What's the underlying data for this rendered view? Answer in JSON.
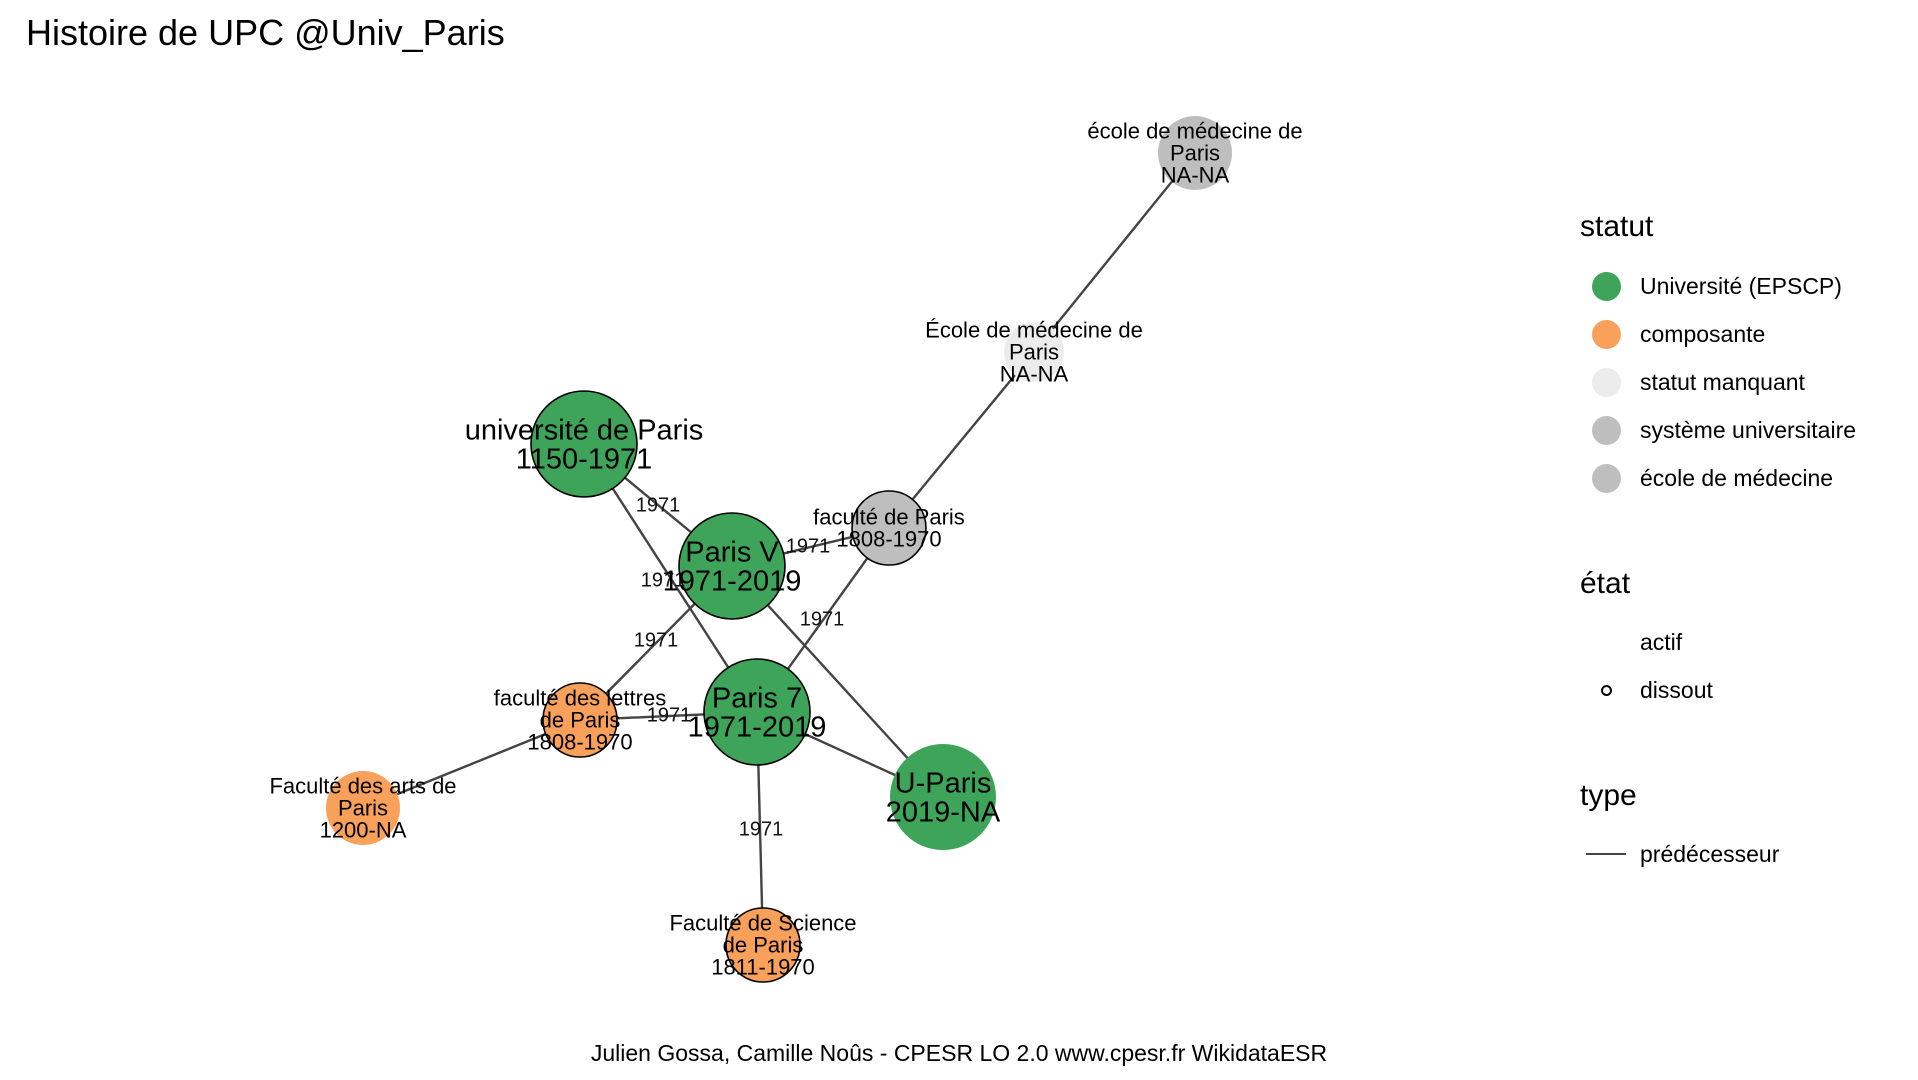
{
  "title": "Histoire de UPC @Univ_Paris",
  "caption": "Julien Gossa, Camille Noûs - CPESR LO 2.0 www.cpesr.fr WikidataESR",
  "legend": {
    "statut": {
      "title": "statut",
      "items": [
        {
          "label": "Université (EPSCP)",
          "color": "#3ea45a"
        },
        {
          "label": "composante",
          "color": "#f9a05a"
        },
        {
          "label": "statut manquant",
          "color": "#ececec"
        },
        {
          "label": "système universitaire",
          "color": "#bebebe"
        },
        {
          "label": "école de médecine",
          "color": "#bebebe"
        }
      ]
    },
    "etat": {
      "title": "état",
      "items": [
        {
          "label": "actif"
        },
        {
          "label": "dissout"
        }
      ]
    },
    "type": {
      "title": "type",
      "items": [
        {
          "label": "prédécesseur",
          "color": "#444444"
        }
      ]
    }
  },
  "diagram": {
    "nodes": [
      {
        "id": "ecole_med_1",
        "lines": [
          "école de médecine de",
          "Paris",
          "NA-NA"
        ],
        "fill": "#bebebe",
        "outline": false
      },
      {
        "id": "ecole_med_2",
        "lines": [
          "École de médecine de",
          "Paris",
          "NA-NA"
        ],
        "fill": "#ececec",
        "outline": false
      },
      {
        "id": "univ_paris",
        "lines": [
          "université de Paris",
          "1150-1971"
        ],
        "fill": "#3ea45a",
        "outline": true
      },
      {
        "id": "fac_paris",
        "lines": [
          "faculté de Paris",
          "1808-1970"
        ],
        "fill": "#bebebe",
        "outline": true
      },
      {
        "id": "paris5",
        "lines": [
          "Paris V",
          "1971-2019"
        ],
        "fill": "#3ea45a",
        "outline": true
      },
      {
        "id": "fac_lettres",
        "lines": [
          "faculté des lettres",
          "de Paris",
          "1808-1970"
        ],
        "fill": "#f9a05a",
        "outline": true
      },
      {
        "id": "paris7",
        "lines": [
          "Paris 7",
          "1971-2019"
        ],
        "fill": "#3ea45a",
        "outline": true
      },
      {
        "id": "u_paris",
        "lines": [
          "U-Paris",
          "2019-NA"
        ],
        "fill": "#3ea45a",
        "outline": false
      },
      {
        "id": "fac_arts",
        "lines": [
          "Faculté des arts de",
          "Paris",
          "1200-NA"
        ],
        "fill": "#f9a05a",
        "outline": false
      },
      {
        "id": "fac_sciences",
        "lines": [
          "Faculté de Science",
          "de Paris",
          "1811-1970"
        ],
        "fill": "#f9a05a",
        "outline": true
      }
    ],
    "edges": [
      {
        "from": "ecole_med_1",
        "to": "ecole_med_2",
        "label": ""
      },
      {
        "from": "ecole_med_2",
        "to": "fac_paris",
        "label": ""
      },
      {
        "from": "univ_paris",
        "to": "paris5",
        "label": "1971"
      },
      {
        "from": "univ_paris",
        "to": "paris7",
        "label": "1971"
      },
      {
        "from": "fac_paris",
        "to": "paris5",
        "label": "1971"
      },
      {
        "from": "fac_paris",
        "to": "paris7",
        "label": "1971"
      },
      {
        "from": "paris5",
        "to": "fac_lettres",
        "label": "1971"
      },
      {
        "from": "paris5",
        "to": "u_paris",
        "label": ""
      },
      {
        "from": "fac_lettres",
        "to": "paris7",
        "label": "1971"
      },
      {
        "from": "fac_lettres",
        "to": "fac_arts",
        "label": ""
      },
      {
        "from": "paris7",
        "to": "u_paris",
        "label": ""
      },
      {
        "from": "paris7",
        "to": "fac_sciences",
        "label": "1971"
      }
    ]
  }
}
